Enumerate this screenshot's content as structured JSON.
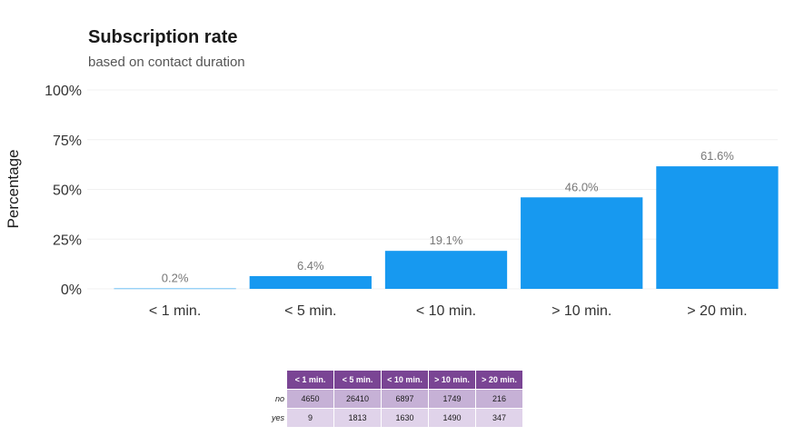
{
  "chart_data": {
    "type": "bar",
    "title": "Subscription rate",
    "subtitle": "based on contact duration",
    "xlabel": "",
    "ylabel": "Percentage",
    "ylim": [
      0,
      100
    ],
    "yticks": [
      "0%",
      "25%",
      "50%",
      "75%",
      "100%"
    ],
    "ytick_values": [
      0,
      25,
      50,
      75,
      100
    ],
    "categories": [
      "< 1 min.",
      "< 5 min.",
      "< 10 min.",
      "> 10 min.",
      "> 20 min."
    ],
    "values": [
      0.2,
      6.4,
      19.1,
      46.0,
      61.6
    ],
    "value_labels": [
      "0.2%",
      "6.4%",
      "19.1%",
      "46.0%",
      "61.6%"
    ],
    "bar_color": "#1799f0",
    "grid": true,
    "legend": "none",
    "table": {
      "columns": [
        "< 1 min.",
        "< 5 min.",
        "< 10 min.",
        "> 10 min.",
        "> 20 min."
      ],
      "rows": [
        {
          "label": "no",
          "values": [
            "4650",
            "26410",
            "6897",
            "1749",
            "216"
          ]
        },
        {
          "label": "yes",
          "values": [
            "9",
            "1813",
            "1630",
            "1490",
            "347"
          ]
        }
      ],
      "header_color": "#7a4594"
    }
  }
}
